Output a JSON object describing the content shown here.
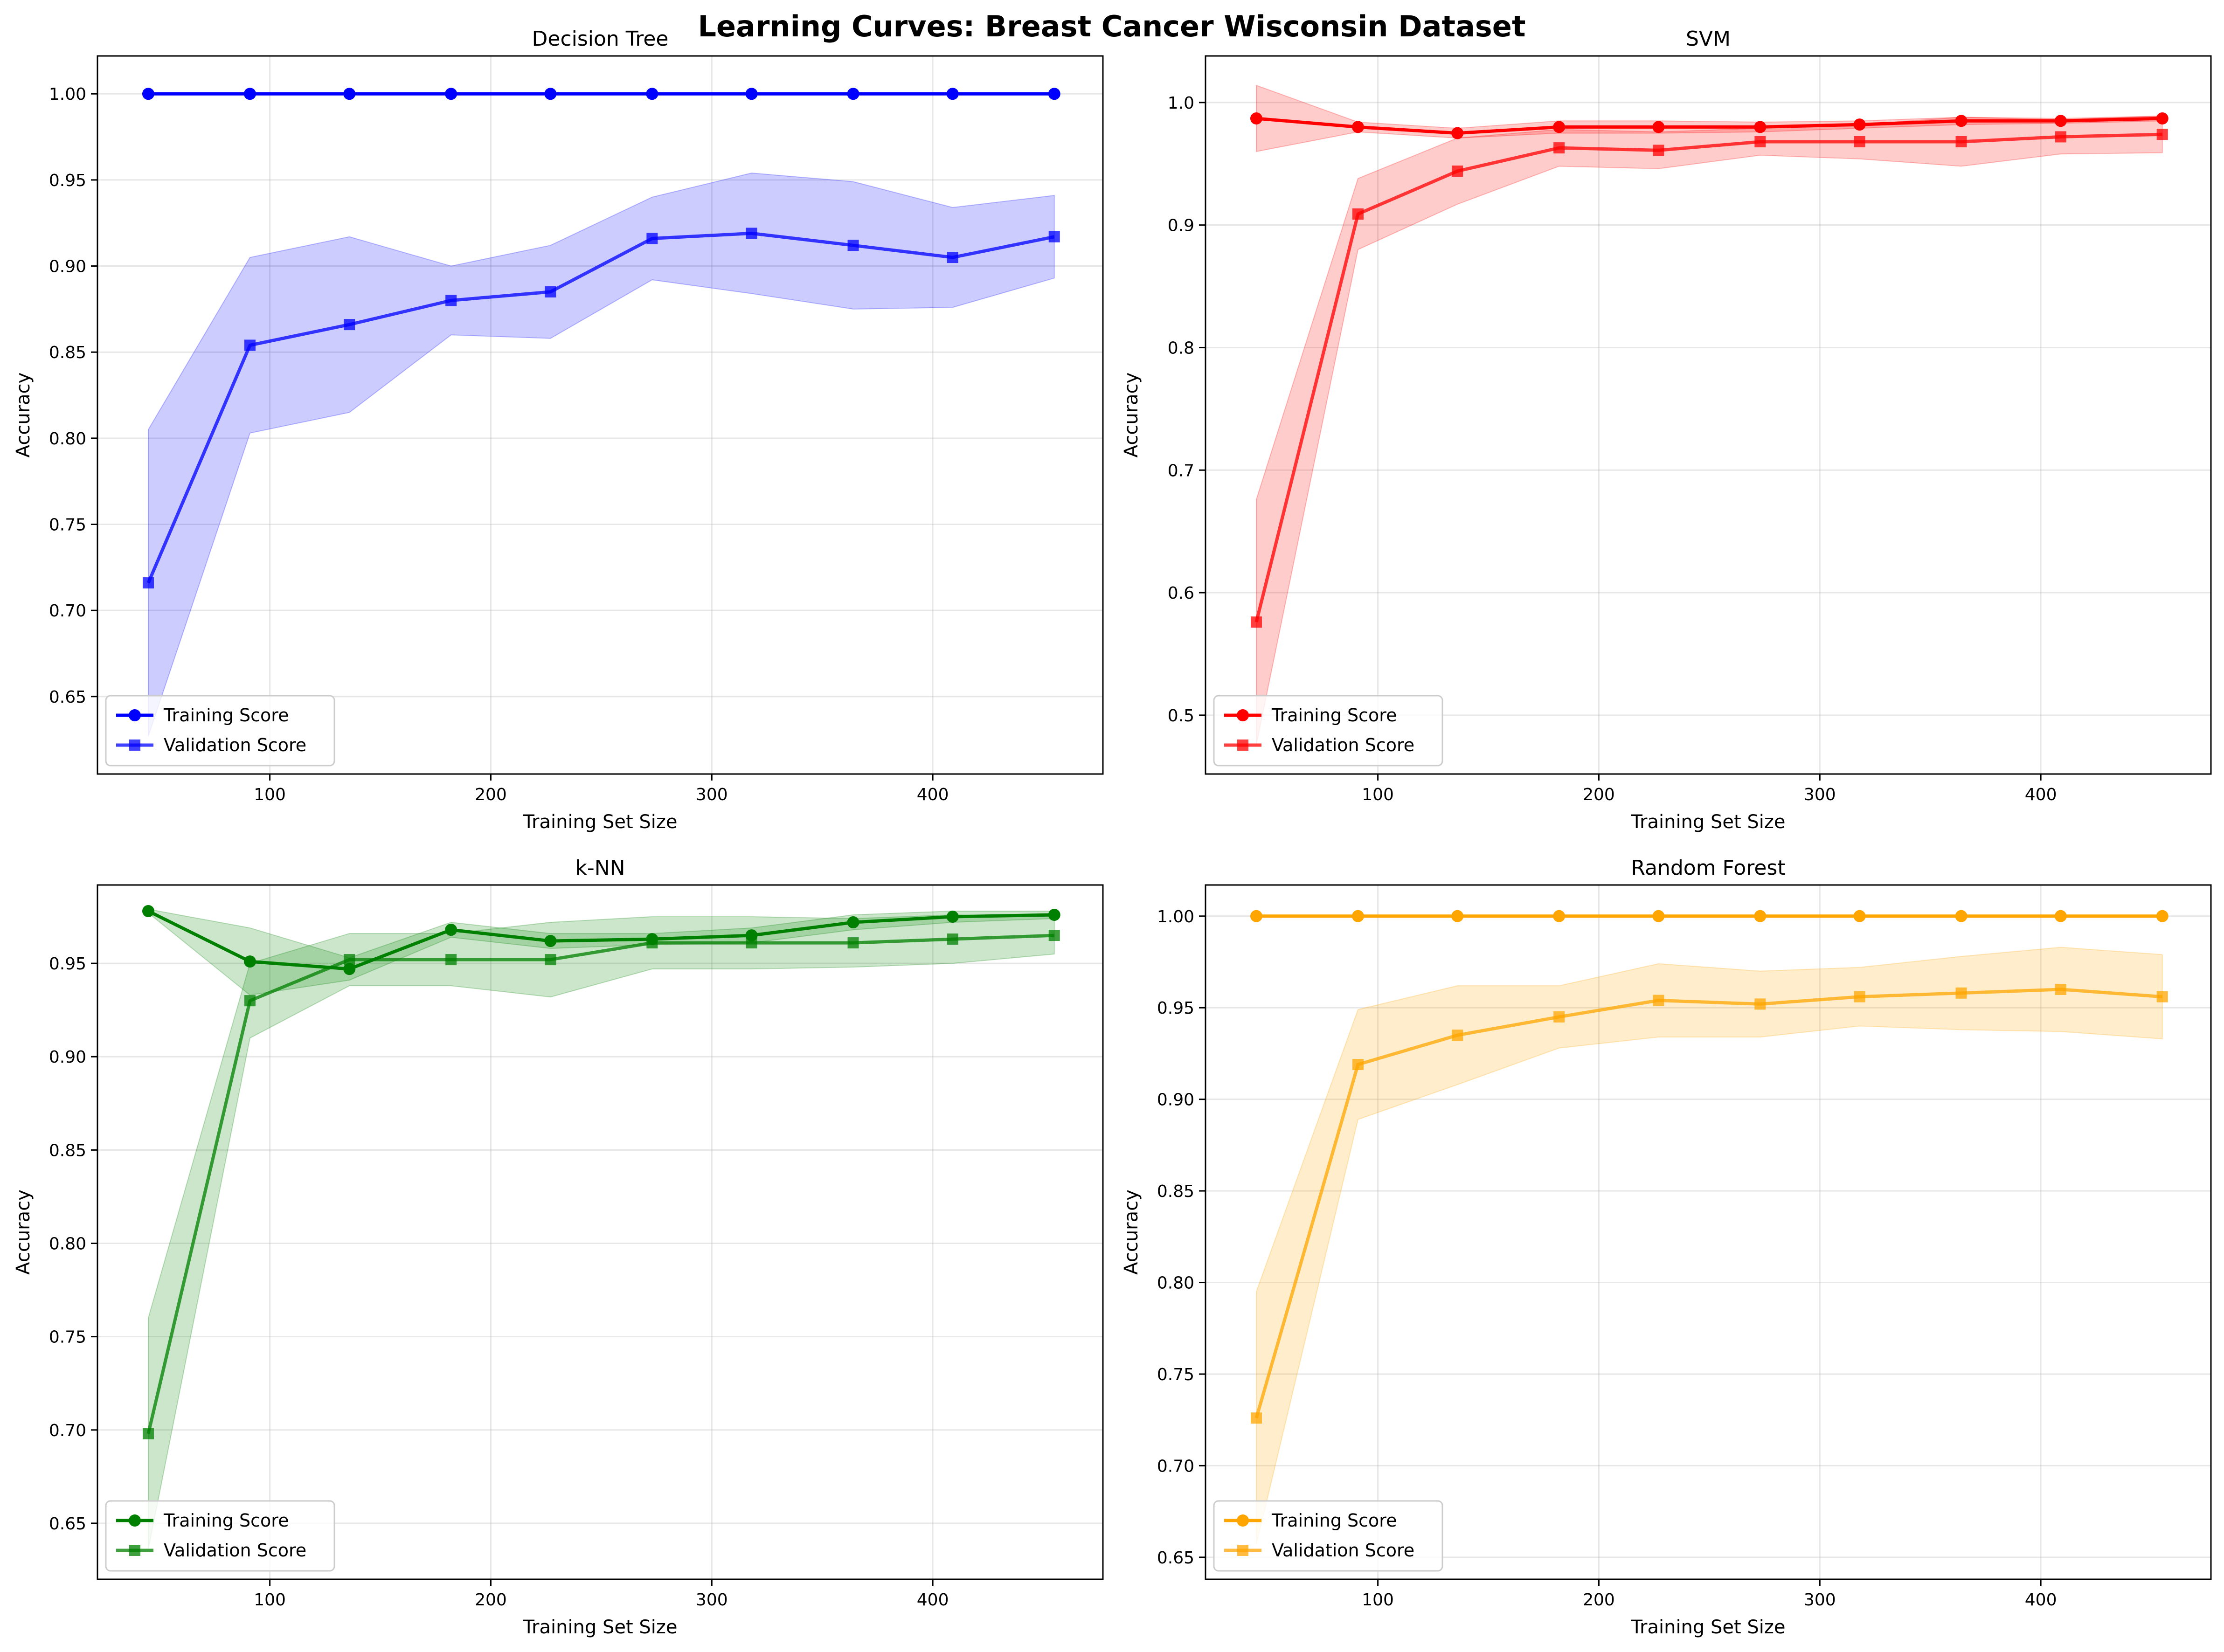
{
  "chart_data": {
    "title": "Learning Curves: Breast Cancer Wisconsin Dataset",
    "subplots": [
      {
        "type": "line",
        "title": "Decision Tree",
        "xlabel": "Training Set Size",
        "ylabel": "Accuracy",
        "xlim": [
          22,
          477
        ],
        "ylim": [
          0.605,
          1.022
        ],
        "xticks": [
          100,
          200,
          300,
          400
        ],
        "yticks": [
          0.65,
          0.7,
          0.75,
          0.8,
          0.85,
          0.9,
          0.95,
          1.0
        ],
        "ytick_labels": [
          "0.65",
          "0.70",
          "0.75",
          "0.80",
          "0.85",
          "0.90",
          "0.95",
          "1.00"
        ],
        "grid": true,
        "legend_position": "lower-left",
        "x": [
          45,
          91,
          136,
          182,
          227,
          273,
          318,
          364,
          409,
          455
        ],
        "series": [
          {
            "name": "Training Score",
            "color": "#0000ff",
            "marker": "circle",
            "alpha": 1.0,
            "values": [
              1.0,
              1.0,
              1.0,
              1.0,
              1.0,
              1.0,
              1.0,
              1.0,
              1.0,
              1.0
            ],
            "std": [
              0,
              0,
              0,
              0,
              0,
              0,
              0,
              0,
              0,
              0
            ]
          },
          {
            "name": "Validation Score",
            "color": "#0000ff",
            "marker": "square",
            "alpha": 0.75,
            "values": [
              0.716,
              0.854,
              0.866,
              0.88,
              0.885,
              0.916,
              0.919,
              0.912,
              0.905,
              0.917
            ],
            "std": [
              0.089,
              0.051,
              0.051,
              0.02,
              0.027,
              0.024,
              0.035,
              0.037,
              0.029,
              0.024
            ]
          }
        ]
      },
      {
        "type": "line",
        "title": "SVM",
        "xlabel": "Training Set Size",
        "ylabel": "Accuracy",
        "xlim": [
          22,
          477
        ],
        "ylim": [
          0.452,
          1.038
        ],
        "xticks": [
          100,
          200,
          300,
          400
        ],
        "yticks": [
          0.5,
          0.6,
          0.7,
          0.8,
          0.9,
          1.0
        ],
        "ytick_labels": [
          "0.5",
          "0.6",
          "0.7",
          "0.8",
          "0.9",
          "1.0"
        ],
        "grid": true,
        "legend_position": "lower-left",
        "x": [
          45,
          91,
          136,
          182,
          227,
          273,
          318,
          364,
          409,
          455
        ],
        "series": [
          {
            "name": "Training Score",
            "color": "#ff0000",
            "marker": "circle",
            "alpha": 1.0,
            "values": [
              0.987,
              0.98,
              0.975,
              0.98,
              0.98,
              0.98,
              0.982,
              0.985,
              0.985,
              0.987
            ],
            "std": [
              0.027,
              0.004,
              0.004,
              0.005,
              0.005,
              0.004,
              0.003,
              0.003,
              0.002,
              0.002
            ]
          },
          {
            "name": "Validation Score",
            "color": "#ff0000",
            "marker": "square",
            "alpha": 0.75,
            "values": [
              0.576,
              0.909,
              0.944,
              0.963,
              0.961,
              0.968,
              0.968,
              0.968,
              0.972,
              0.974
            ],
            "std": [
              0.1,
              0.029,
              0.027,
              0.015,
              0.015,
              0.011,
              0.014,
              0.02,
              0.014,
              0.015
            ]
          }
        ]
      },
      {
        "type": "line",
        "title": "k-NN",
        "xlabel": "Training Set Size",
        "ylabel": "Accuracy",
        "xlim": [
          22,
          477
        ],
        "ylim": [
          0.62,
          0.992
        ],
        "xticks": [
          100,
          200,
          300,
          400
        ],
        "yticks": [
          0.65,
          0.7,
          0.75,
          0.8,
          0.85,
          0.9,
          0.95
        ],
        "ytick_labels": [
          "0.65",
          "0.70",
          "0.75",
          "0.80",
          "0.85",
          "0.90",
          "0.95"
        ],
        "grid": true,
        "legend_position": "lower-left",
        "x": [
          45,
          91,
          136,
          182,
          227,
          273,
          318,
          364,
          409,
          455
        ],
        "series": [
          {
            "name": "Training Score",
            "color": "#008000",
            "marker": "circle",
            "alpha": 1.0,
            "values": [
              0.978,
              0.951,
              0.947,
              0.968,
              0.962,
              0.963,
              0.965,
              0.972,
              0.975,
              0.976
            ],
            "std": [
              0.001,
              0.018,
              0.006,
              0.004,
              0.004,
              0.003,
              0.004,
              0.004,
              0.003,
              0.002
            ]
          },
          {
            "name": "Validation Score",
            "color": "#008000",
            "marker": "square",
            "alpha": 0.75,
            "values": [
              0.698,
              0.93,
              0.952,
              0.952,
              0.952,
              0.961,
              0.961,
              0.961,
              0.963,
              0.965
            ],
            "std": [
              0.062,
              0.02,
              0.014,
              0.014,
              0.02,
              0.014,
              0.014,
              0.013,
              0.013,
              0.01
            ]
          }
        ]
      },
      {
        "type": "line",
        "title": "Random Forest",
        "xlabel": "Training Set Size",
        "ylabel": "Accuracy",
        "xlim": [
          22,
          477
        ],
        "ylim": [
          0.638,
          1.017
        ],
        "xticks": [
          100,
          200,
          300,
          400
        ],
        "yticks": [
          0.65,
          0.7,
          0.75,
          0.8,
          0.85,
          0.9,
          0.95,
          1.0
        ],
        "ytick_labels": [
          "0.65",
          "0.70",
          "0.75",
          "0.80",
          "0.85",
          "0.90",
          "0.95",
          "1.00"
        ],
        "grid": true,
        "legend_position": "lower-left",
        "x": [
          45,
          91,
          136,
          182,
          227,
          273,
          318,
          364,
          409,
          455
        ],
        "series": [
          {
            "name": "Training Score",
            "color": "#ffa500",
            "marker": "circle",
            "alpha": 1.0,
            "values": [
              1.0,
              1.0,
              1.0,
              1.0,
              1.0,
              1.0,
              1.0,
              1.0,
              1.0,
              1.0
            ],
            "std": [
              0,
              0,
              0,
              0,
              0,
              0,
              0,
              0,
              0,
              0
            ]
          },
          {
            "name": "Validation Score",
            "color": "#ffa500",
            "marker": "square",
            "alpha": 0.75,
            "values": [
              0.726,
              0.919,
              0.935,
              0.945,
              0.954,
              0.952,
              0.956,
              0.958,
              0.96,
              0.956
            ],
            "std": [
              0.069,
              0.03,
              0.027,
              0.017,
              0.02,
              0.018,
              0.016,
              0.02,
              0.023,
              0.023
            ]
          }
        ]
      }
    ]
  }
}
